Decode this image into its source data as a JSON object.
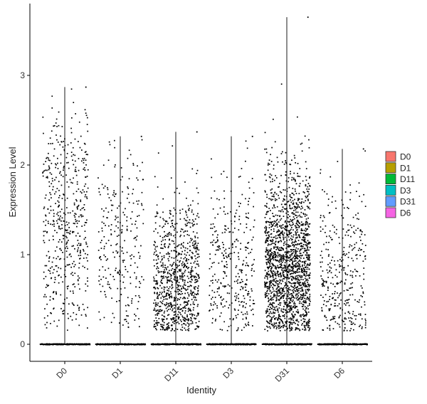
{
  "chart_data": {
    "type": "scatter",
    "subtype": "violin-jitter",
    "title": "",
    "xlabel": "Identity",
    "ylabel": "Expression Level",
    "categories": [
      "D0",
      "D1",
      "D11",
      "D3",
      "D31",
      "D6"
    ],
    "ylim": [
      -0.2,
      3.8
    ],
    "yticks": [
      0,
      1,
      2,
      3
    ],
    "grid": false,
    "legend": {
      "placement": "right",
      "entries": [
        {
          "name": "D0",
          "color": "#F8766D"
        },
        {
          "name": "D1",
          "color": "#B79F00"
        },
        {
          "name": "D11",
          "color": "#00BA38"
        },
        {
          "name": "D3",
          "color": "#00BFC4"
        },
        {
          "name": "D31",
          "color": "#619CFF"
        },
        {
          "name": "D6",
          "color": "#F564E3"
        }
      ]
    },
    "groups": [
      {
        "name": "D0",
        "max": 2.87,
        "n_nonzero": 520,
        "mean_nonzero": 1.35,
        "sd_nonzero": 0.68
      },
      {
        "name": "D1",
        "max": 2.32,
        "n_nonzero": 260,
        "mean_nonzero": 1.05,
        "sd_nonzero": 0.6
      },
      {
        "name": "D11",
        "max": 2.37,
        "n_nonzero": 900,
        "mean_nonzero": 0.62,
        "sd_nonzero": 0.48
      },
      {
        "name": "D3",
        "max": 2.32,
        "n_nonzero": 340,
        "mean_nonzero": 0.75,
        "sd_nonzero": 0.55
      },
      {
        "name": "D31",
        "max": 3.65,
        "n_nonzero": 1800,
        "mean_nonzero": 0.85,
        "sd_nonzero": 0.55
      },
      {
        "name": "D6",
        "max": 2.18,
        "n_nonzero": 360,
        "mean_nonzero": 0.7,
        "sd_nonzero": 0.52
      }
    ],
    "point_color": "#000000"
  }
}
